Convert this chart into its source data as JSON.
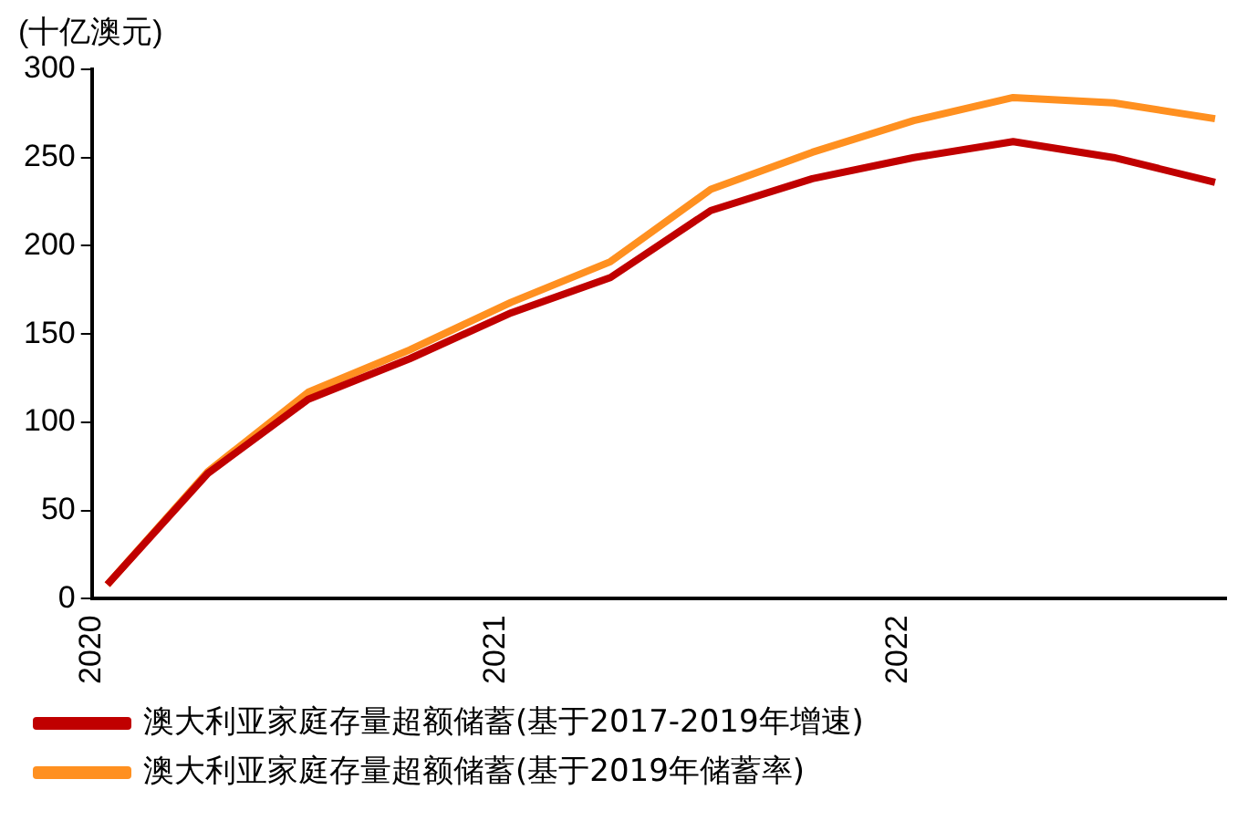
{
  "chart_data": {
    "type": "line",
    "ylabel": "(十亿澳元)",
    "x": [
      "2020-01-15",
      "2020-04-15",
      "2020-07-15",
      "2020-10-15",
      "2021-01-15",
      "2021-04-15",
      "2021-07-15",
      "2021-10-15",
      "2022-01-15",
      "2022-04-15",
      "2022-07-15",
      "2022-10-15"
    ],
    "series": [
      {
        "name": "澳大利亚家庭存量超额储蓄(基于2017-2019年增速)",
        "color": "#c00000",
        "values": [
          8,
          71,
          113,
          136,
          162,
          182,
          220,
          238,
          250,
          259,
          250,
          236
        ]
      },
      {
        "name": "澳大利亚家庭存量超额储蓄(基于2019年储蓄率)",
        "color": "#ff9020",
        "values": [
          8,
          72,
          117,
          141,
          168,
          191,
          232,
          253,
          271,
          284,
          281,
          272
        ]
      }
    ],
    "xlim": [
      "2020-01-01",
      "2022-10-25"
    ],
    "xticks": [
      "2020",
      "2021",
      "2022"
    ],
    "ylim": [
      0,
      300
    ],
    "yticks": [
      0,
      50,
      100,
      150,
      200,
      250,
      300
    ],
    "grid": false,
    "legend": "bottom",
    "line_style": "solid",
    "marker": "none"
  }
}
